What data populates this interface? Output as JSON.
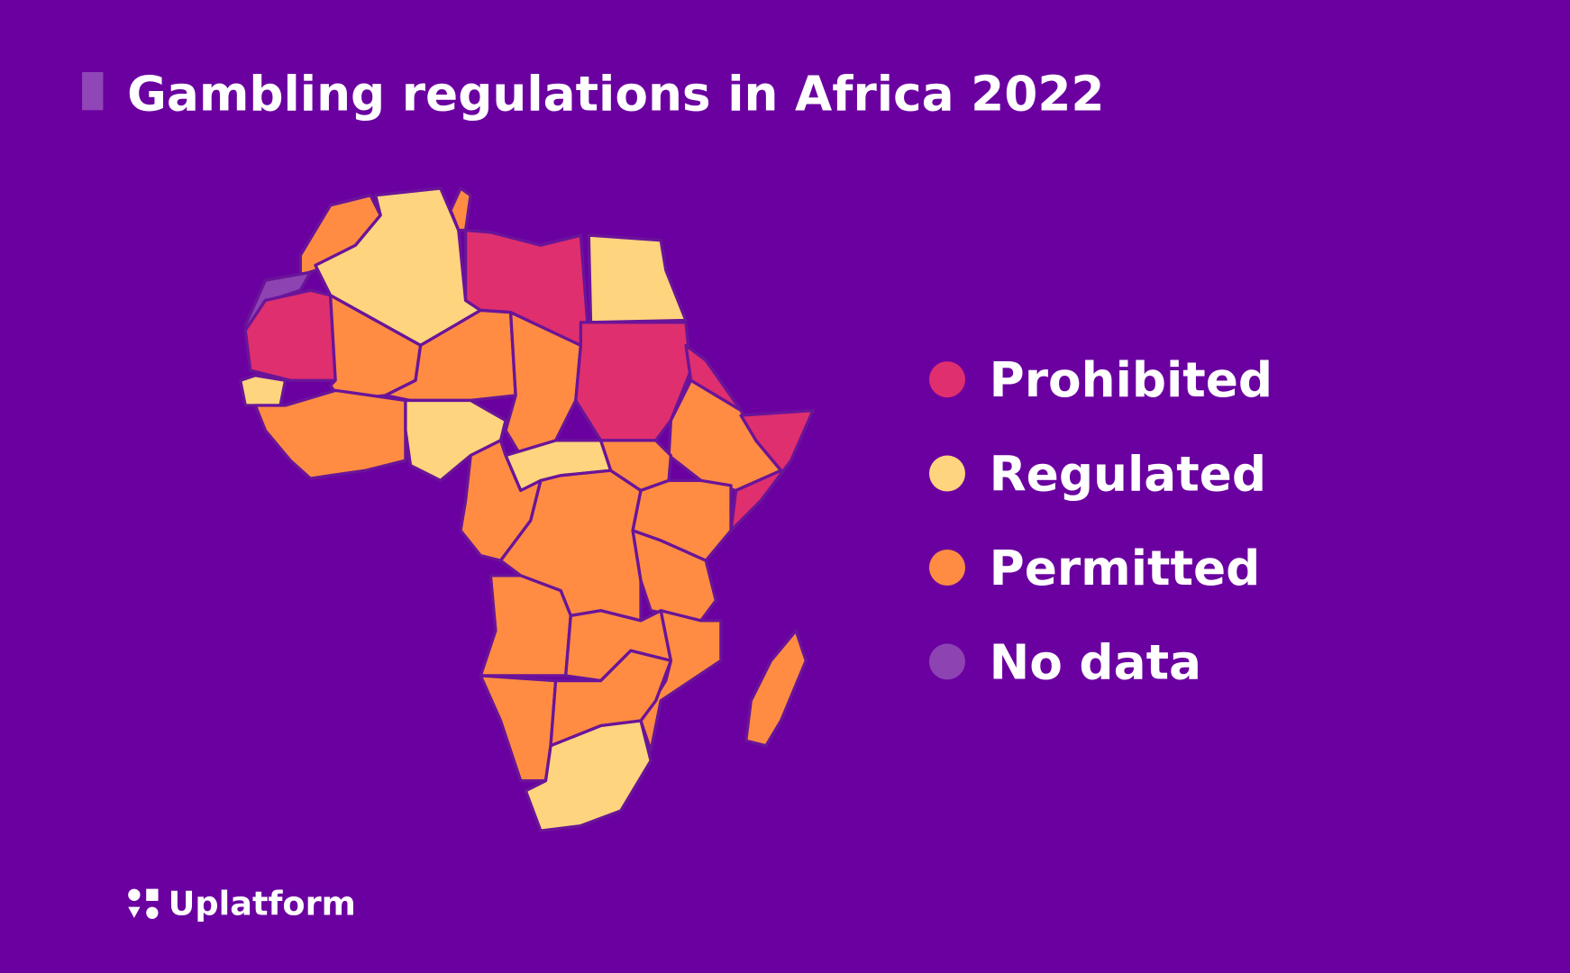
{
  "header": {
    "title": "Gambling regulations in Africa 2022"
  },
  "legend": {
    "items": [
      {
        "label": "Prohibited",
        "color": "#e02f6e"
      },
      {
        "label": "Regulated",
        "color": "#ffd47e"
      },
      {
        "label": "Permitted",
        "color": "#ff8c42"
      },
      {
        "label": "No data",
        "color": "#8e43b3"
      }
    ]
  },
  "brand": {
    "name": "Uplatform"
  }
}
